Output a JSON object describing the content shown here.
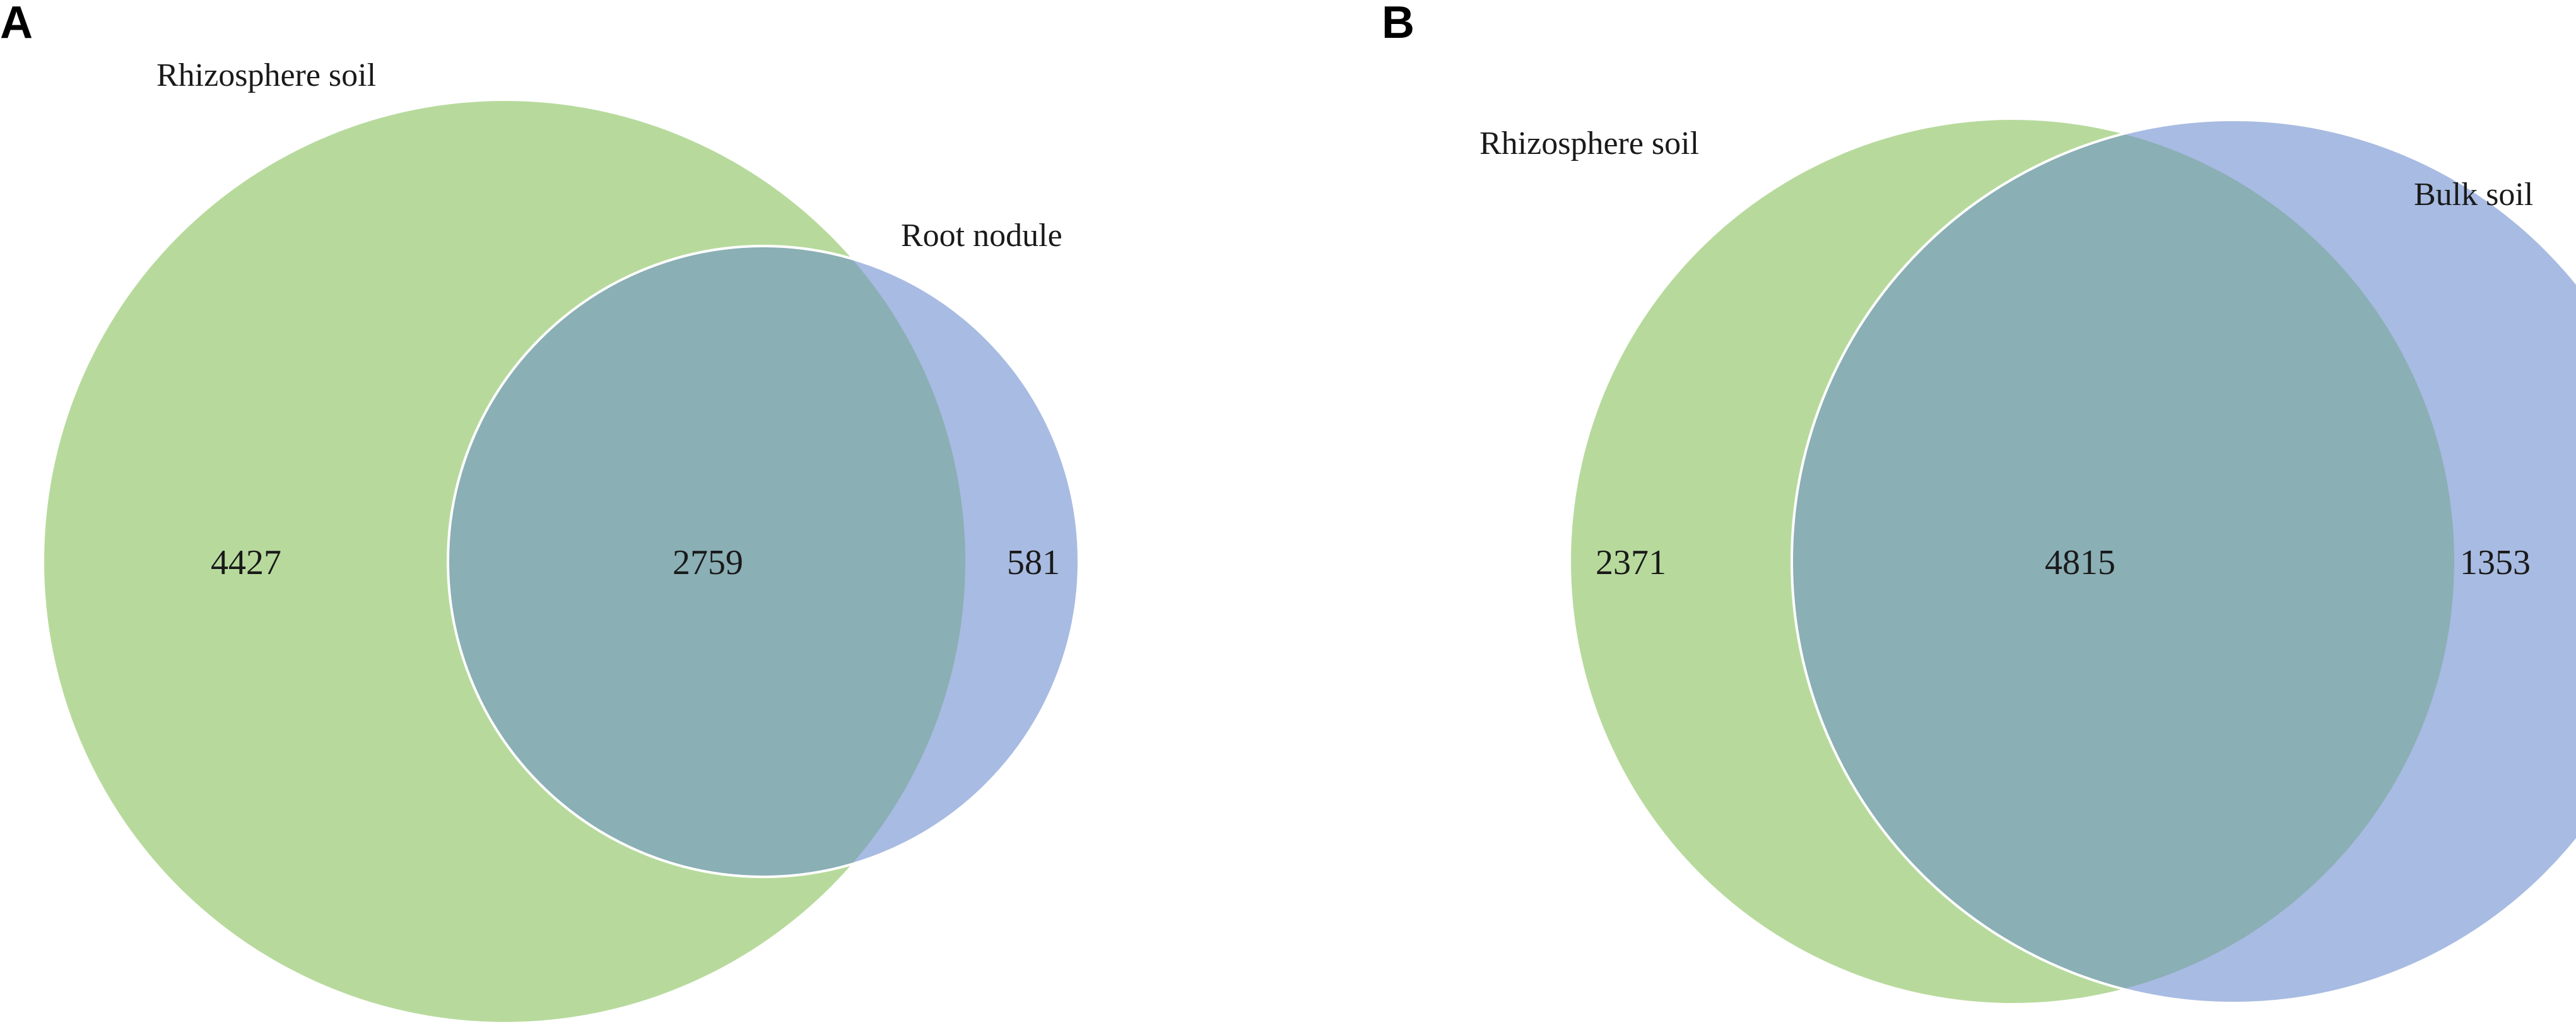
{
  "panels": [
    {
      "letter": "A",
      "sets": [
        {
          "label": "Rhizosphere soil",
          "only": "4427",
          "color": "#b7da9c"
        },
        {
          "label": "Root nodule",
          "only": "581",
          "color": "#a8bbe2"
        }
      ],
      "shared": "2759",
      "overlap_color": "#8aafb5"
    },
    {
      "letter": "B",
      "sets": [
        {
          "label": "Rhizosphere soil",
          "only": "2371",
          "color": "#b7da9c"
        },
        {
          "label": "Bulk soil",
          "only": "1353",
          "color": "#a8bbe2"
        }
      ],
      "shared": "4815",
      "overlap_color": "#8aafb5"
    }
  ]
}
